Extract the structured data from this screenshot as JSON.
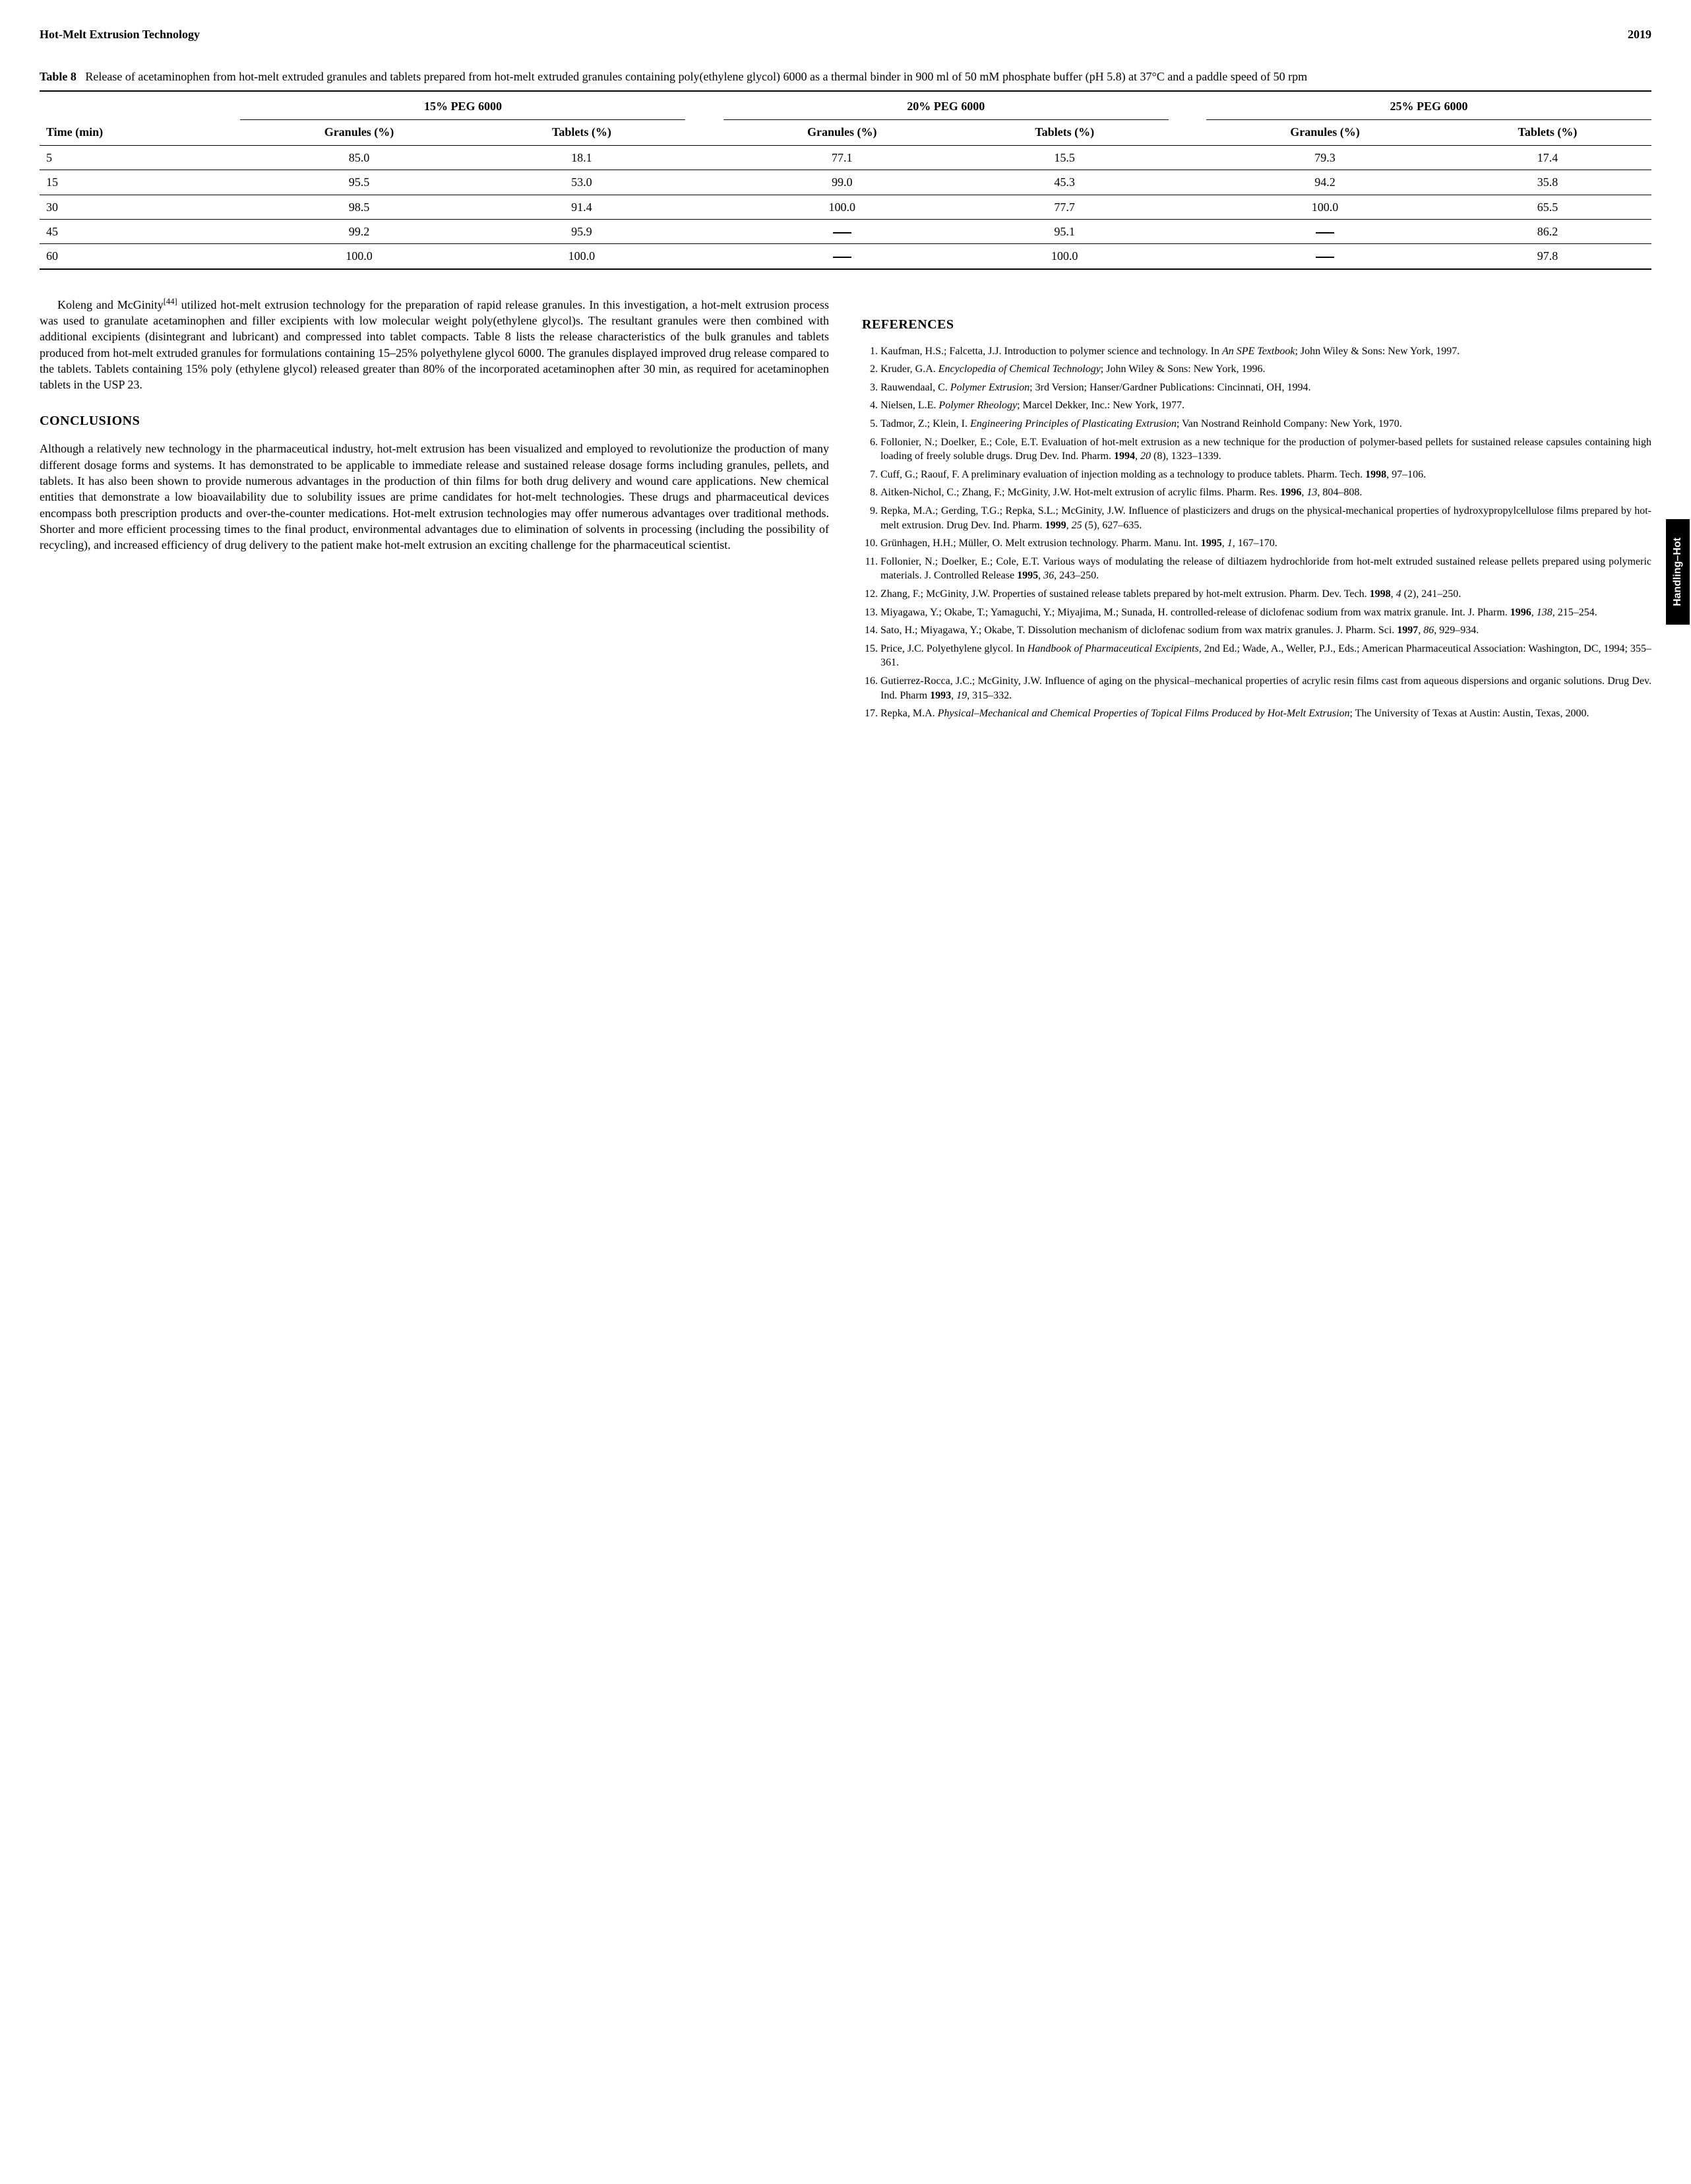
{
  "header": {
    "title": "Hot-Melt Extrusion Technology",
    "page_number": "2019"
  },
  "side_tab": "Handling–Hot",
  "table8": {
    "label": "Table 8",
    "caption": "Release of acetaminophen from hot-melt extruded granules and tablets prepared from hot-melt extruded granules containing poly(ethylene glycol) 6000 as a thermal binder in 900 ml of 50 mM phosphate buffer (pH 5.8) at 37°C and a paddle speed of 50 rpm",
    "group_headers": [
      "15% PEG 6000",
      "20% PEG 6000",
      "25% PEG 6000"
    ],
    "time_col": "Time (min)",
    "sub_headers": [
      "Granules (%)",
      "Tablets (%)",
      "Granules (%)",
      "Tablets (%)",
      "Granules (%)",
      "Tablets (%)"
    ],
    "rows": [
      [
        "5",
        "85.0",
        "18.1",
        "77.1",
        "15.5",
        "79.3",
        "17.4"
      ],
      [
        "15",
        "95.5",
        "53.0",
        "99.0",
        "45.3",
        "94.2",
        "35.8"
      ],
      [
        "30",
        "98.5",
        "91.4",
        "100.0",
        "77.7",
        "100.0",
        "65.5"
      ],
      [
        "45",
        "99.2",
        "95.9",
        "—",
        "95.1",
        "—",
        "86.2"
      ],
      [
        "60",
        "100.0",
        "100.0",
        "—",
        "100.0",
        "—",
        "97.8"
      ]
    ]
  },
  "body_left_1": "Koleng and McGinity[44] utilized hot-melt extrusion technology for the preparation of rapid release granules. In this investigation, a hot-melt extrusion process was used to granulate acetaminophen and filler excipients with low molecular weight poly(ethylene glycol)s. The resultant granules were then combined with additional excipients (disintegrant and lubricant) and compressed into tablet compacts. Table 8 lists the release characteristics of the bulk granules and tablets produced from hot-melt extruded granules for formulations containing 15–25% polyethylene glycol 6000. The granules displayed improved drug release compared to the tablets. Tablets containing 15% poly (ethylene glycol) released greater than 80% of the incorporated acetaminophen after 30 min, as required for acetaminophen tablets in the USP 23.",
  "conclusions_heading": "CONCLUSIONS",
  "conclusions_text": "Although a relatively new technology in the pharmaceutical industry, hot-melt extrusion has been visualized and employed to revolutionize the production of many different dosage forms and systems. It has demonstrated to be applicable to immediate release and sustained release dosage forms including granules, pellets, and tablets. It has also been shown to provide numerous advantages in the production of thin films for both drug delivery and wound care applications. New chemical entities that demonstrate a low bioavailability due to solubility issues are prime candidates for hot-melt technologies. These drugs and pharmaceutical devices encompass both prescription products and over-the-counter medications. Hot-melt extrusion technologies may offer numerous advantages over traditional methods. Shorter and more efficient processing times to the final product, environmental advantages due to elimination of solvents in processing (including the possibility of recycling), and increased efficiency of drug delivery to the patient make hot-melt extrusion an exciting challenge for the pharmaceutical scientist.",
  "references_heading": "REFERENCES",
  "references": [
    "Kaufman, H.S.; Falcetta, J.J. Introduction to polymer science and technology. In <i>An SPE Textbook</i>; John Wiley & Sons: New York, 1997.",
    "Kruder, G.A. <i>Encyclopedia of Chemical Technology</i>; John Wiley & Sons: New York, 1996.",
    "Rauwendaal, C. <i>Polymer Extrusion</i>; 3rd Version; Hanser/Gardner Publications: Cincinnati, OH, 1994.",
    "Nielsen, L.E. <i>Polymer Rheology</i>; Marcel Dekker, Inc.: New York, 1977.",
    "Tadmor, Z.; Klein, I. <i>Engineering Principles of Plasticating Extrusion</i>; Van Nostrand Reinhold Company: New York, 1970.",
    "Follonier, N.; Doelker, E.; Cole, E.T. Evaluation of hot-melt extrusion as a new technique for the production of polymer-based pellets for sustained release capsules containing high loading of freely soluble drugs. Drug Dev. Ind. Pharm. <b>1994</b>, <i>20</i> (8), 1323–1339.",
    "Cuff, G.; Raouf, F. A preliminary evaluation of injection molding as a technology to produce tablets. Pharm. Tech. <b>1998</b>, 97–106.",
    "Aitken-Nichol, C.; Zhang, F.; McGinity, J.W. Hot-melt extrusion of acrylic films. Pharm. Res. <b>1996</b>, <i>13</i>, 804–808.",
    "Repka, M.A.; Gerding, T.G.; Repka, S.L.; McGinity, J.W. Influence of plasticizers and drugs on the physical-mechanical properties of hydroxypropylcellulose films prepared by hot-melt extrusion. Drug Dev. Ind. Pharm. <b>1999</b>, <i>25</i> (5), 627–635.",
    "Grünhagen, H.H.; Müller, O. Melt extrusion technology. Pharm. Manu. Int. <b>1995</b>, <i>1</i>, 167–170.",
    "Follonier, N.; Doelker, E.; Cole, E.T. Various ways of modulating the release of diltiazem hydrochloride from hot-melt extruded sustained release pellets prepared using polymeric materials. J. Controlled Release <b>1995</b>, <i>36</i>, 243–250.",
    "Zhang, F.; McGinity, J.W. Properties of sustained release tablets prepared by hot-melt extrusion. Pharm. Dev. Tech. <b>1998</b>, <i>4</i> (2), 241–250.",
    "Miyagawa, Y.; Okabe, T.; Yamaguchi, Y.; Miyajima, M.; Sunada, H. controlled-release of diclofenac sodium from wax matrix granule. Int. J. Pharm. <b>1996</b>, <i>138</i>, 215–254.",
    "Sato, H.; Miyagawa, Y.; Okabe, T. Dissolution mechanism of diclofenac sodium from wax matrix granules. J. Pharm. Sci. <b>1997</b>, <i>86</i>, 929–934.",
    "Price, J.C. Polyethylene glycol. In <i>Handbook of Pharmaceutical Excipients</i>, 2nd Ed.; Wade, A., Weller, P.J., Eds.; American Pharmaceutical Association: Washington, DC, 1994; 355–361.",
    "Gutierrez-Rocca, J.C.; McGinity, J.W. Influence of aging on the physical–mechanical properties of acrylic resin films cast from aqueous dispersions and organic solutions. Drug Dev. Ind. Pharm <b>1993</b>, <i>19</i>, 315–332.",
    "Repka, M.A. <i>Physical–Mechanical and Chemical Properties of Topical Films Produced by Hot-Melt Extrusion</i>; The University of Texas at Austin: Austin, Texas, 2000."
  ]
}
